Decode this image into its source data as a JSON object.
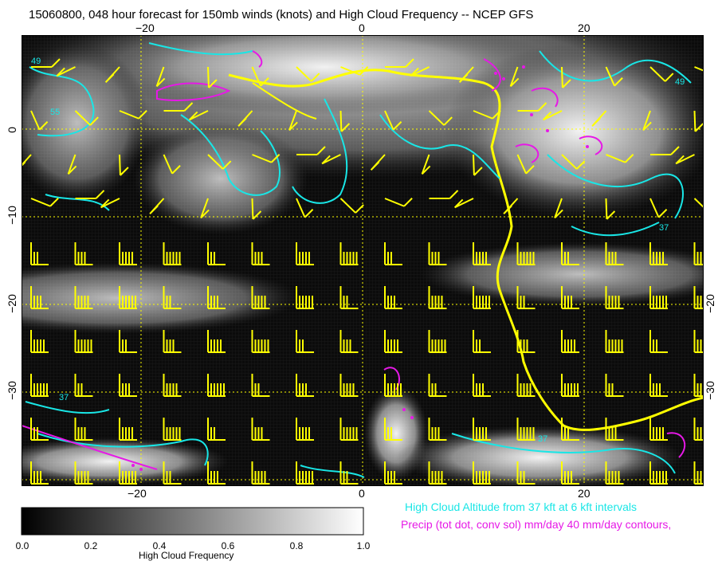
{
  "title": "15060800, 048 hour forecast for 150mb winds (knots) and High Cloud Frequency -- NCEP GFS",
  "axes": {
    "top_ticks": [
      {
        "value": -20,
        "label": "−20"
      },
      {
        "value": 0,
        "label": "0"
      },
      {
        "value": 20,
        "label": "20"
      }
    ],
    "bottom_ticks": [
      {
        "value": -20,
        "label": "−20"
      },
      {
        "value": 0,
        "label": "0"
      },
      {
        "value": 20,
        "label": "20"
      }
    ],
    "left_ticks": [
      {
        "value": 0,
        "label": "0"
      },
      {
        "value": -10,
        "label": "−10"
      },
      {
        "value": -20,
        "label": "−20"
      },
      {
        "value": -30,
        "label": "−30"
      }
    ],
    "right_ticks": [
      {
        "value": -20,
        "label": "−20"
      },
      {
        "value": -30,
        "label": "−30"
      }
    ],
    "lon_range": [
      -30,
      30
    ],
    "lat_range": [
      -40,
      10
    ]
  },
  "contour_labels": {
    "cyan": [
      "49",
      "55",
      "37",
      "37",
      "49",
      "37"
    ]
  },
  "legend": {
    "altitude": "High Cloud Altitude from 37 kft at 6 kft intervals",
    "precip": "Precip (tot dot, conv sol) mm/day 40 mm/day contours,"
  },
  "colorbar": {
    "ticks": [
      "0.0",
      "0.2",
      "0.4",
      "0.6",
      "0.8",
      "1.0"
    ],
    "label": "High Cloud Frequency"
  },
  "colors": {
    "cloud_altitude": "#19e6e6",
    "precip": "#e619e6",
    "wind_barbs": "#ffff00",
    "coastline": "#ffff00",
    "grid": "#ffff00"
  }
}
